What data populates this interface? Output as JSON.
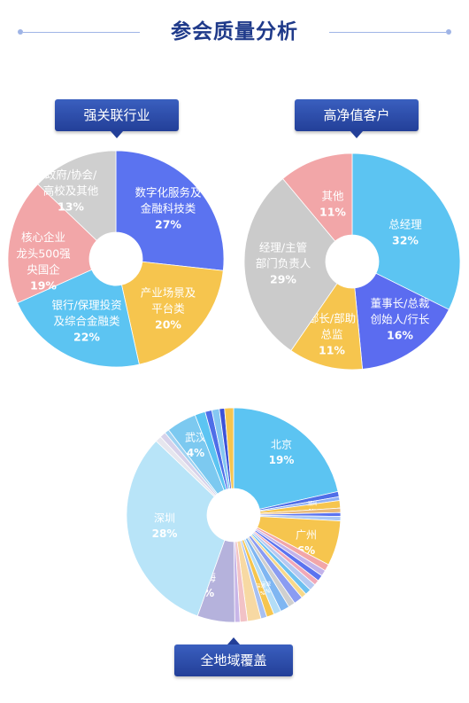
{
  "page": {
    "title": "参会质量分析"
  },
  "chart_data": [
    {
      "type": "pie",
      "title": "强关联行业",
      "slices": [
        {
          "label": [
            "数字化服务及",
            "金融科技类"
          ],
          "value": 27,
          "value_label": "27%",
          "color": "#5b73f0"
        },
        {
          "label": [
            "产业场景及",
            "平台类"
          ],
          "value": 20,
          "value_label": "20%",
          "color": "#f6c54e"
        },
        {
          "label": [
            "银行/保理投资",
            "及综合金融类"
          ],
          "value": 22,
          "value_label": "22%",
          "color": "#5cc4f2"
        },
        {
          "label": [
            "核心企业",
            "龙头500强",
            "央国企"
          ],
          "value": 19,
          "value_label": "19%",
          "color": "#f2a6a8"
        },
        {
          "label": [
            "政府/协会/",
            "高校及其他"
          ],
          "value": 13,
          "value_label": "13%",
          "color": "#cfcfcf"
        }
      ]
    },
    {
      "type": "pie",
      "title": "高净值客户",
      "slices": [
        {
          "label": [
            "总经理"
          ],
          "value": 32,
          "value_label": "32%",
          "color": "#5cc4f2"
        },
        {
          "label": [
            "董事长/总裁",
            "创始人/行长"
          ],
          "value": 16,
          "value_label": "16%",
          "color": "#5b6cf0"
        },
        {
          "label": [
            "部长/部助",
            "总监"
          ],
          "value": 11,
          "value_label": "11%",
          "color": "#f6c54e"
        },
        {
          "label": [
            "经理/主管",
            "部门负责人"
          ],
          "value": 29,
          "value_label": "29%",
          "color": "#cbcbcb"
        },
        {
          "label": [
            "其他"
          ],
          "value": 11,
          "value_label": "11%",
          "color": "#f2a6a8"
        }
      ]
    },
    {
      "type": "pie",
      "title": "全地域覆盖",
      "slices": [
        {
          "label": [
            "北京"
          ],
          "value": 19,
          "value_label": "19%",
          "color": "#5cc4f2"
        },
        {
          "label": [],
          "value": 0.7,
          "value_label": "",
          "color": "#4f6ee8"
        },
        {
          "label": [],
          "value": 0.5,
          "value_label": "",
          "color": "#8fb0f5"
        },
        {
          "label": [
            "潮州"
          ],
          "value": 1,
          "value_label": "1%",
          "color": "#f6c54e"
        },
        {
          "label": [],
          "value": 0.6,
          "value_label": "",
          "color": "#e8b97a"
        },
        {
          "label": [],
          "value": 0.5,
          "value_label": "",
          "color": "#5b73f0"
        },
        {
          "label": [],
          "value": 0.6,
          "value_label": "",
          "color": "#a9c7f5"
        },
        {
          "label": [
            "广州"
          ],
          "value": 6,
          "value_label": "6%",
          "color": "#f6c54e"
        },
        {
          "label": [],
          "value": 0.9,
          "value_label": "",
          "color": "#f2a6a8"
        },
        {
          "label": [],
          "value": 0.8,
          "value_label": "",
          "color": "#c3b3ea"
        },
        {
          "label": [],
          "value": 0.8,
          "value_label": "",
          "color": "#5b73f0"
        },
        {
          "label": [],
          "value": 0.7,
          "value_label": "",
          "color": "#f1a9b8"
        },
        {
          "label": [],
          "value": 0.9,
          "value_label": "",
          "color": "#b6c9f2"
        },
        {
          "label": [],
          "value": 0.8,
          "value_label": "",
          "color": "#6ec0f0"
        },
        {
          "label": [],
          "value": 0.7,
          "value_label": "",
          "color": "#f7d98a"
        },
        {
          "label": [],
          "value": 1.2,
          "value_label": "",
          "color": "#8a9cf2"
        },
        {
          "label": [],
          "value": 0.9,
          "value_label": "",
          "color": "#cfcfcf"
        },
        {
          "label": [],
          "value": 1.2,
          "value_label": "",
          "color": "#7fb6f2"
        },
        {
          "label": [
            "宁波"
          ],
          "value": 1,
          "value_label": "1%",
          "color": "#b3ddf7"
        },
        {
          "label": [
            "深圳"
          ],
          "value": 1,
          "value_label": "1%",
          "color": "#f6c54e"
        },
        {
          "label": [],
          "value": 0.8,
          "value_label": "",
          "color": "#a7c0f2"
        },
        {
          "label": [],
          "value": 1.8,
          "value_label": "",
          "color": "#f7d9a3"
        },
        {
          "label": [],
          "value": 1.0,
          "value_label": "",
          "color": "#f2c2c6"
        },
        {
          "label": [],
          "value": 0.7,
          "value_label": "",
          "color": "#c8b6e8"
        },
        {
          "label": [
            "上海"
          ],
          "value": 5,
          "value_label": "5%",
          "color": "#b5b2dc"
        },
        {
          "label": [
            "深圳"
          ],
          "value": 28,
          "value_label": "28%",
          "color": "#b8e4f8"
        },
        {
          "label": [],
          "value": 0.8,
          "value_label": "",
          "color": "#e6e6ee"
        },
        {
          "label": [],
          "value": 0.8,
          "value_label": "",
          "color": "#d7d2ea"
        },
        {
          "label": [],
          "value": 0.6,
          "value_label": "",
          "color": "#9fd2f2"
        },
        {
          "label": [
            "武汉"
          ],
          "value": 4,
          "value_label": "4%",
          "color": "#7cc9f0"
        },
        {
          "label": [],
          "value": 1.4,
          "value_label": "",
          "color": "#5cc4f2"
        },
        {
          "label": [],
          "value": 0.9,
          "value_label": "",
          "color": "#4f6ee8"
        },
        {
          "label": [],
          "value": 1.0,
          "value_label": "",
          "color": "#86c7f2"
        },
        {
          "label": [],
          "value": 0.7,
          "value_label": "",
          "color": "#3c52d8"
        },
        {
          "label": [],
          "value": 1.2,
          "value_label": "",
          "color": "#f6c54e"
        }
      ]
    }
  ]
}
